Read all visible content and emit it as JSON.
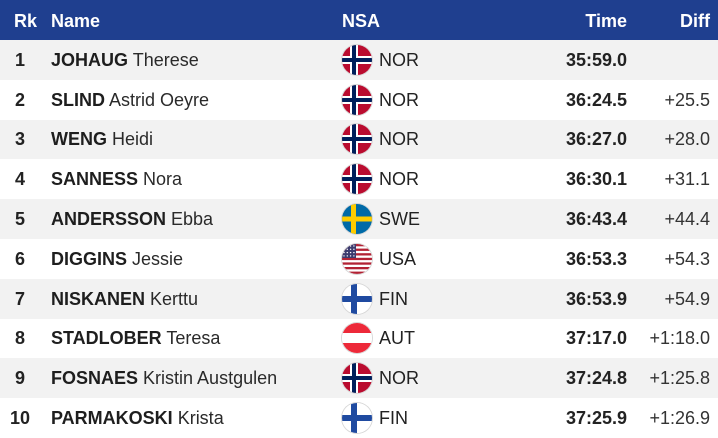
{
  "header": {
    "rank": "Rk",
    "name": "Name",
    "nsa": "NSA",
    "time": "Time",
    "diff": "Diff"
  },
  "rows": [
    {
      "rank": "1",
      "surname": "JOHAUG",
      "given": "Therese",
      "nsa": "NOR",
      "flag": "norway-flag-icon",
      "time": "35:59.0",
      "diff": ""
    },
    {
      "rank": "2",
      "surname": "SLIND",
      "given": "Astrid Oeyre",
      "nsa": "NOR",
      "flag": "norway-flag-icon",
      "time": "36:24.5",
      "diff": "+25.5"
    },
    {
      "rank": "3",
      "surname": "WENG",
      "given": "Heidi",
      "nsa": "NOR",
      "flag": "norway-flag-icon",
      "time": "36:27.0",
      "diff": "+28.0"
    },
    {
      "rank": "4",
      "surname": "SANNESS",
      "given": "Nora",
      "nsa": "NOR",
      "flag": "norway-flag-icon",
      "time": "36:30.1",
      "diff": "+31.1"
    },
    {
      "rank": "5",
      "surname": "ANDERSSON",
      "given": "Ebba",
      "nsa": "SWE",
      "flag": "sweden-flag-icon",
      "time": "36:43.4",
      "diff": "+44.4"
    },
    {
      "rank": "6",
      "surname": "DIGGINS",
      "given": "Jessie",
      "nsa": "USA",
      "flag": "usa-flag-icon",
      "time": "36:53.3",
      "diff": "+54.3"
    },
    {
      "rank": "7",
      "surname": "NISKANEN",
      "given": "Kerttu",
      "nsa": "FIN",
      "flag": "finland-flag-icon",
      "time": "36:53.9",
      "diff": "+54.9"
    },
    {
      "rank": "8",
      "surname": "STADLOBER",
      "given": "Teresa",
      "nsa": "AUT",
      "flag": "austria-flag-icon",
      "time": "37:17.0",
      "diff": "+1:18.0"
    },
    {
      "rank": "9",
      "surname": "FOSNAES",
      "given": "Kristin Austgulen",
      "nsa": "NOR",
      "flag": "norway-flag-icon",
      "time": "37:24.8",
      "diff": "+1:25.8"
    },
    {
      "rank": "10",
      "surname": "PARMAKOSKI",
      "given": "Krista",
      "nsa": "FIN",
      "flag": "finland-flag-icon",
      "time": "37:25.9",
      "diff": "+1:26.9"
    }
  ],
  "colors": {
    "header_bg": "#1f3f8f",
    "row_alt_bg": "#f2f2f2"
  }
}
